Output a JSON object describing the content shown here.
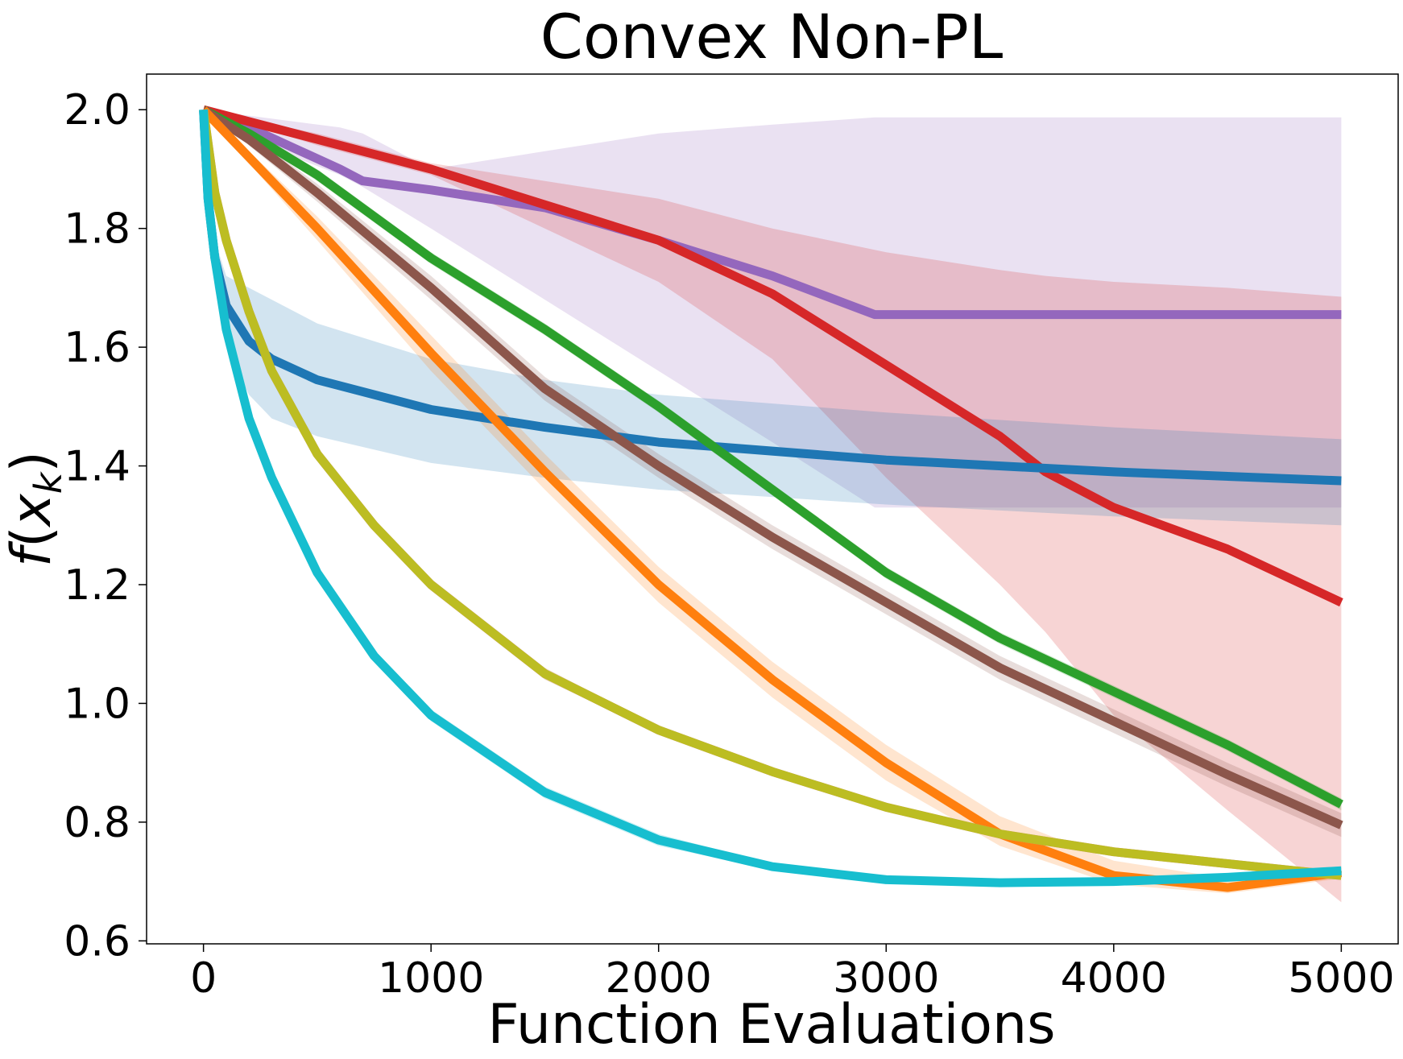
{
  "chart_data": {
    "type": "line",
    "title": "Convex Non-PL",
    "xlabel": "Function Evaluations",
    "ylabel": "f(x_k)",
    "ylabel_parts": {
      "f": "f",
      "open": "(",
      "x": "x",
      "sub": "k",
      "close": ")"
    },
    "xlim": [
      -250,
      5250
    ],
    "ylim": [
      0.595,
      2.06
    ],
    "xticks": [
      0,
      1000,
      2000,
      3000,
      4000,
      5000
    ],
    "xtick_labels": [
      "0",
      "1000",
      "2000",
      "3000",
      "4000",
      "5000"
    ],
    "yticks": [
      0.6,
      0.8,
      1.0,
      1.2,
      1.4,
      1.6,
      1.8,
      2.0
    ],
    "ytick_labels": [
      "0.6",
      "0.8",
      "1.0",
      "1.2",
      "1.4",
      "1.6",
      "1.8",
      "2.0"
    ],
    "grid": false,
    "legend": "none",
    "series": [
      {
        "color": "#9467bd",
        "x": [
          0,
          200,
          400,
          600,
          700,
          1000,
          1500,
          2000,
          2500,
          2950,
          5000
        ],
        "y": [
          2.0,
          1.97,
          1.935,
          1.9,
          1.88,
          1.865,
          1.835,
          1.78,
          1.72,
          1.655,
          1.655
        ],
        "band_upper": [
          2.0,
          1.99,
          1.98,
          1.97,
          1.96,
          1.9,
          1.93,
          1.96,
          1.975,
          1.987,
          1.987
        ],
        "band_lower": [
          2.0,
          1.95,
          1.92,
          1.89,
          1.87,
          1.8,
          1.68,
          1.56,
          1.44,
          1.33,
          1.33
        ]
      },
      {
        "color": "#d62728",
        "x": [
          0,
          500,
          1000,
          1500,
          2000,
          2500,
          3000,
          3500,
          3700,
          4000,
          4500,
          5000
        ],
        "y": [
          2.0,
          1.95,
          1.9,
          1.84,
          1.78,
          1.69,
          1.57,
          1.45,
          1.39,
          1.33,
          1.26,
          1.17
        ],
        "band_upper": [
          2.0,
          1.96,
          1.91,
          1.88,
          1.85,
          1.8,
          1.76,
          1.73,
          1.72,
          1.71,
          1.7,
          1.685
        ],
        "band_lower": [
          2.0,
          1.94,
          1.89,
          1.8,
          1.71,
          1.58,
          1.38,
          1.2,
          1.12,
          0.98,
          0.82,
          0.665
        ]
      },
      {
        "color": "#1f77b4",
        "x": [
          0,
          20,
          50,
          100,
          200,
          300,
          500,
          1000,
          1500,
          2000,
          3000,
          4000,
          5000
        ],
        "y": [
          2.0,
          1.85,
          1.75,
          1.67,
          1.61,
          1.58,
          1.545,
          1.495,
          1.465,
          1.44,
          1.41,
          1.39,
          1.375
        ],
        "band_upper": [
          2.0,
          1.88,
          1.78,
          1.72,
          1.7,
          1.68,
          1.64,
          1.58,
          1.545,
          1.52,
          1.49,
          1.465,
          1.445
        ],
        "band_lower": [
          2.0,
          1.82,
          1.7,
          1.6,
          1.52,
          1.48,
          1.45,
          1.405,
          1.38,
          1.36,
          1.335,
          1.315,
          1.3
        ]
      },
      {
        "color": "#2ca02c",
        "x": [
          0,
          200,
          500,
          1000,
          1500,
          2000,
          2500,
          3000,
          3500,
          4000,
          4500,
          5000
        ],
        "y": [
          2.0,
          1.96,
          1.89,
          1.75,
          1.63,
          1.5,
          1.36,
          1.22,
          1.11,
          1.02,
          0.93,
          0.83
        ],
        "band_upper": [
          2.0,
          1.965,
          1.9,
          1.76,
          1.64,
          1.51,
          1.37,
          1.23,
          1.12,
          1.03,
          0.94,
          0.84
        ],
        "band_lower": [
          2.0,
          1.955,
          1.88,
          1.74,
          1.62,
          1.49,
          1.35,
          1.21,
          1.1,
          1.01,
          0.92,
          0.82
        ]
      },
      {
        "color": "#8c564b",
        "x": [
          0,
          200,
          500,
          1000,
          1500,
          2000,
          2500,
          3000,
          3500,
          4000,
          4500,
          5000
        ],
        "y": [
          2.0,
          1.95,
          1.86,
          1.7,
          1.53,
          1.4,
          1.28,
          1.17,
          1.06,
          0.97,
          0.88,
          0.795
        ],
        "band_upper": [
          2.0,
          1.96,
          1.875,
          1.72,
          1.55,
          1.42,
          1.3,
          1.19,
          1.08,
          0.99,
          0.9,
          0.815
        ],
        "band_lower": [
          2.0,
          1.94,
          1.845,
          1.68,
          1.51,
          1.38,
          1.26,
          1.15,
          1.04,
          0.95,
          0.86,
          0.775
        ]
      },
      {
        "color": "#ff7f0e",
        "x": [
          0,
          200,
          500,
          1000,
          1500,
          2000,
          2500,
          3000,
          3500,
          4000,
          4500,
          5000
        ],
        "y": [
          2.0,
          1.92,
          1.8,
          1.59,
          1.39,
          1.2,
          1.04,
          0.9,
          0.78,
          0.71,
          0.69,
          0.715
        ],
        "band_upper": [
          2.0,
          1.93,
          1.82,
          1.62,
          1.42,
          1.23,
          1.07,
          0.93,
          0.81,
          0.735,
          0.705,
          0.725
        ],
        "band_lower": [
          2.0,
          1.91,
          1.78,
          1.56,
          1.36,
          1.17,
          1.01,
          0.87,
          0.76,
          0.695,
          0.68,
          0.705
        ]
      },
      {
        "color": "#e377c2",
        "x": [
          0,
          50,
          100,
          200,
          300,
          500,
          750,
          1000,
          1500,
          2000,
          2500,
          3000,
          3500,
          4000,
          4500,
          5000
        ],
        "y": [
          2.0,
          1.86,
          1.78,
          1.66,
          1.56,
          1.42,
          1.3,
          1.2,
          1.05,
          0.955,
          0.885,
          0.825,
          0.78,
          0.75,
          0.73,
          0.71
        ],
        "band_upper": [
          2.0,
          1.87,
          1.79,
          1.67,
          1.57,
          1.43,
          1.31,
          1.21,
          1.06,
          0.96,
          0.89,
          0.83,
          0.785,
          0.755,
          0.735,
          0.715
        ],
        "band_lower": [
          2.0,
          1.85,
          1.77,
          1.65,
          1.55,
          1.41,
          1.29,
          1.19,
          1.04,
          0.95,
          0.88,
          0.82,
          0.775,
          0.745,
          0.725,
          0.705
        ]
      },
      {
        "color": "#bcbd22",
        "x": [
          0,
          50,
          100,
          200,
          300,
          500,
          750,
          1000,
          1500,
          2000,
          2500,
          3000,
          3500,
          4000,
          4500,
          5000
        ],
        "y": [
          2.0,
          1.86,
          1.78,
          1.66,
          1.56,
          1.42,
          1.3,
          1.2,
          1.05,
          0.955,
          0.885,
          0.825,
          0.78,
          0.75,
          0.73,
          0.71
        ],
        "band_upper": [
          2.0,
          1.87,
          1.79,
          1.67,
          1.57,
          1.43,
          1.31,
          1.21,
          1.06,
          0.96,
          0.89,
          0.83,
          0.785,
          0.755,
          0.735,
          0.715
        ],
        "band_lower": [
          2.0,
          1.85,
          1.77,
          1.65,
          1.55,
          1.41,
          1.29,
          1.19,
          1.04,
          0.95,
          0.88,
          0.82,
          0.775,
          0.745,
          0.725,
          0.705
        ]
      },
      {
        "color": "#17becf",
        "x": [
          0,
          20,
          50,
          100,
          200,
          300,
          500,
          750,
          1000,
          1500,
          2000,
          2500,
          3000,
          3500,
          4000,
          4500,
          5000
        ],
        "y": [
          2.0,
          1.85,
          1.75,
          1.63,
          1.48,
          1.38,
          1.22,
          1.08,
          0.98,
          0.85,
          0.77,
          0.725,
          0.703,
          0.698,
          0.7,
          0.707,
          0.718
        ],
        "band_upper": [
          2.0,
          1.86,
          1.76,
          1.64,
          1.49,
          1.39,
          1.23,
          1.09,
          0.99,
          0.86,
          0.78,
          0.73,
          0.708,
          0.703,
          0.705,
          0.712,
          0.723
        ],
        "band_lower": [
          2.0,
          1.84,
          1.74,
          1.62,
          1.47,
          1.37,
          1.21,
          1.07,
          0.97,
          0.84,
          0.76,
          0.72,
          0.698,
          0.693,
          0.695,
          0.702,
          0.713
        ]
      }
    ]
  }
}
